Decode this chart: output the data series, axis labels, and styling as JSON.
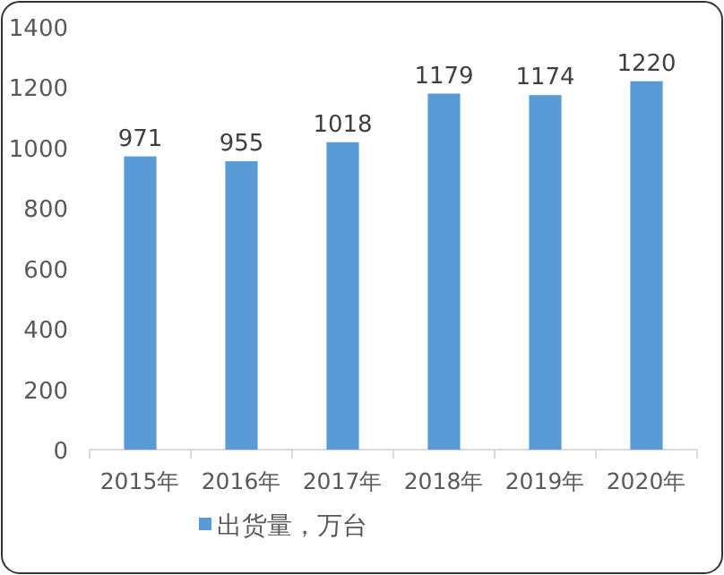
{
  "chart_data": {
    "type": "bar",
    "categories": [
      "2015年",
      "2016年",
      "2017年",
      "2018年",
      "2019年",
      "2020年"
    ],
    "series": [
      {
        "name": "出货量，万台",
        "color": "#5b9bd5",
        "values": [
          971,
          955,
          1018,
          1179,
          1174,
          1220
        ]
      }
    ],
    "ylim": [
      0,
      1400
    ],
    "yticks": [
      0,
      200,
      400,
      600,
      800,
      1000,
      1200,
      1400
    ],
    "data_labels": true,
    "legend": "bottom"
  }
}
